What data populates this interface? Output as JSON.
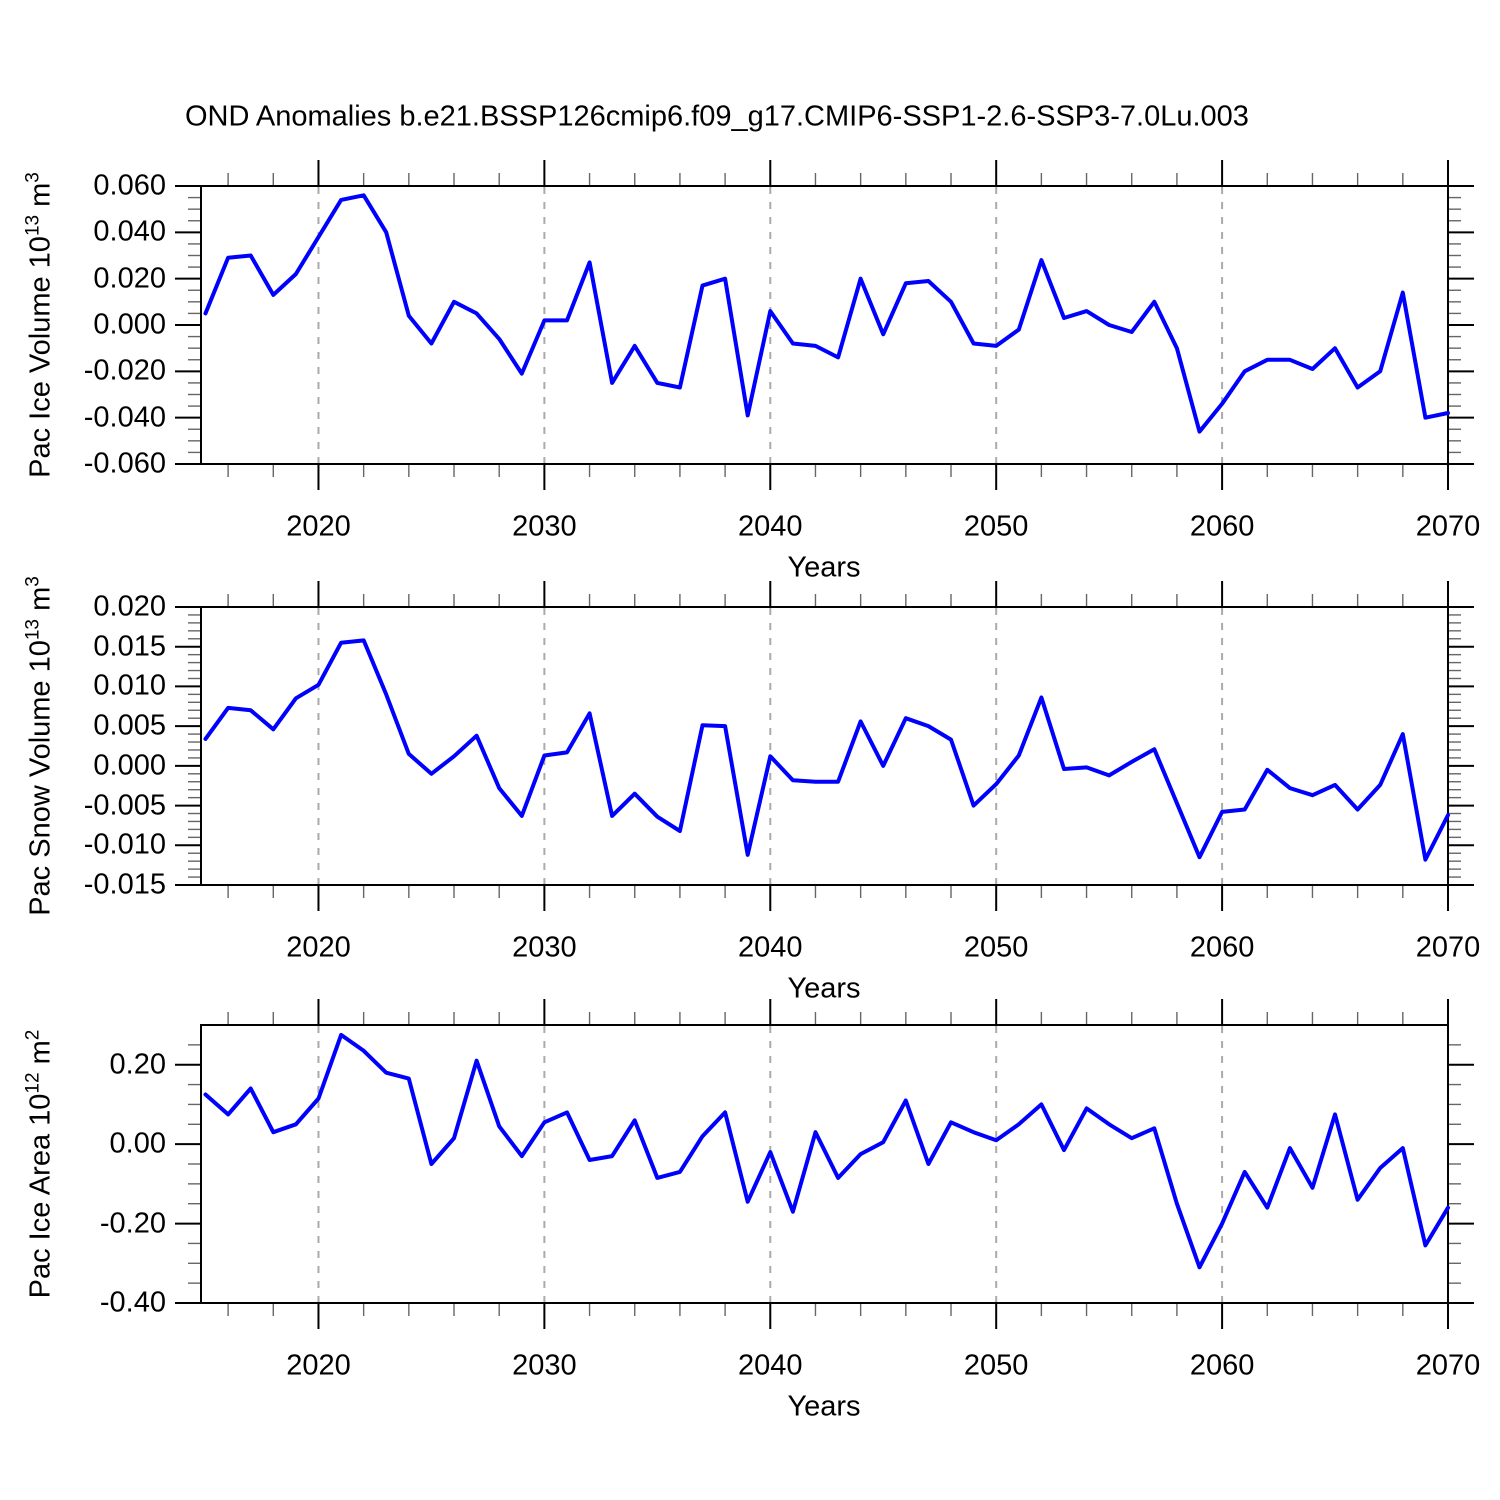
{
  "title": "OND Anomalies b.e21.BSSP126cmip6.f09_g17.CMIP6-SSP1-2.6-SSP3-7.0Lu.003",
  "line_color": "#0000ff",
  "axis_color": "#000000",
  "minor_tick_color": "#666666",
  "gridline_color": "#aaaaaa",
  "chart_data": {
    "type": "line",
    "title": "OND Anomalies b.e21.BSSP126cmip6.f09_g17.CMIP6-SSP1-2.6-SSP3-7.0Lu.003",
    "xlabel": "Years",
    "x_range": [
      2014.8,
      2070
    ],
    "x_major_ticks": [
      2020,
      2030,
      2040,
      2050,
      2060,
      2070
    ],
    "x_minor_tick_step": 2,
    "x_gridlines": [
      2020,
      2030,
      2040,
      2050,
      2060
    ],
    "legend": "none",
    "grid": "vertical-dashed-only",
    "years": [
      2015,
      2016,
      2017,
      2018,
      2019,
      2020,
      2021,
      2022,
      2023,
      2024,
      2025,
      2026,
      2027,
      2028,
      2029,
      2030,
      2031,
      2032,
      2033,
      2034,
      2035,
      2036,
      2037,
      2038,
      2039,
      2040,
      2041,
      2042,
      2043,
      2044,
      2045,
      2046,
      2047,
      2048,
      2049,
      2050,
      2051,
      2052,
      2053,
      2054,
      2055,
      2056,
      2057,
      2058,
      2059,
      2060,
      2061,
      2062,
      2063,
      2064,
      2065,
      2066,
      2067,
      2068,
      2069,
      2070
    ],
    "panels": [
      {
        "name": "pac-ice-volume",
        "ylabel_text": "Pac Ice Volume 10^13 m^3",
        "ylabel_parts": [
          "Pac Ice Volume 10",
          "13",
          " m",
          "3"
        ],
        "ylim": [
          -0.06,
          0.06
        ],
        "y_major_ticks": [
          0.06,
          0.04,
          0.02,
          0,
          -0.02,
          -0.04,
          -0.06
        ],
        "y_tick_labels": [
          "0.060",
          "0.040",
          "0.020",
          "0.000",
          "-0.020",
          "-0.040",
          "-0.060"
        ],
        "y_minor_step": 0.005,
        "values": [
          0.005,
          0.029,
          0.03,
          0.013,
          0.022,
          0.038,
          0.054,
          0.056,
          0.04,
          0.004,
          -0.008,
          0.01,
          0.005,
          -0.006,
          -0.021,
          0.002,
          0.002,
          0.027,
          -0.025,
          -0.009,
          -0.025,
          -0.027,
          0.017,
          0.02,
          -0.039,
          0.006,
          -0.008,
          -0.009,
          -0.014,
          0.02,
          -0.004,
          0.018,
          0.019,
          0.01,
          -0.008,
          -0.009,
          -0.002,
          0.028,
          0.003,
          0.006,
          0.0,
          -0.003,
          0.01,
          -0.01,
          -0.046,
          -0.034,
          -0.02,
          -0.015,
          -0.015,
          -0.019,
          -0.01,
          -0.027,
          -0.02,
          0.014,
          -0.04,
          -0.038
        ]
      },
      {
        "name": "pac-snow-volume",
        "ylabel_text": "Pac Snow Volume 10^13 m^3",
        "ylabel_parts": [
          "Pac Snow Volume 10",
          "13",
          " m",
          "3"
        ],
        "ylim": [
          -0.015,
          0.02
        ],
        "y_major_ticks": [
          0.02,
          0.015,
          0.01,
          0.005,
          0,
          -0.005,
          -0.01,
          -0.015
        ],
        "y_tick_labels": [
          "0.020",
          "0.015",
          "0.010",
          "0.005",
          "0.000",
          "-0.005",
          "-0.010",
          "-0.015"
        ],
        "y_minor_step": 0.001,
        "values": [
          0.0034,
          0.0073,
          0.007,
          0.0046,
          0.0085,
          0.0102,
          0.0155,
          0.0158,
          0.009,
          0.0015,
          -0.001,
          0.0012,
          0.0038,
          -0.0028,
          -0.0063,
          0.0013,
          0.0017,
          0.0066,
          -0.0063,
          -0.0035,
          -0.0064,
          -0.0082,
          0.0051,
          0.005,
          -0.0112,
          0.0012,
          -0.0018,
          -0.002,
          -0.002,
          0.0056,
          0.0,
          0.006,
          0.005,
          0.0033,
          -0.005,
          -0.0023,
          0.0013,
          0.0086,
          -0.0004,
          -0.0002,
          -0.0012,
          0.0005,
          0.0021,
          -0.0047,
          -0.0115,
          -0.0058,
          -0.0055,
          -0.0005,
          -0.0028,
          -0.0037,
          -0.0024,
          -0.0055,
          -0.0024,
          0.004,
          -0.0118,
          -0.0062
        ]
      },
      {
        "name": "pac-ice-area",
        "ylabel_text": "Pac Ice Area 10^12 m^2",
        "ylabel_parts": [
          "Pac Ice Area 10",
          "12",
          " m",
          "2"
        ],
        "ylim": [
          -0.4,
          0.3
        ],
        "y_major_ticks": [
          0.2,
          0,
          -0.2,
          -0.4
        ],
        "y_tick_labels": [
          "0.20",
          "0.00",
          "-0.20",
          "-0.40"
        ],
        "y_minor_step": 0.05,
        "values": [
          0.125,
          0.075,
          0.14,
          0.03,
          0.05,
          0.115,
          0.275,
          0.235,
          0.18,
          0.165,
          -0.05,
          0.015,
          0.21,
          0.045,
          -0.03,
          0.055,
          0.08,
          -0.04,
          -0.03,
          0.06,
          -0.085,
          -0.07,
          0.02,
          0.08,
          -0.145,
          -0.02,
          -0.17,
          0.03,
          -0.085,
          -0.025,
          0.005,
          0.11,
          -0.05,
          0.055,
          0.03,
          0.01,
          0.05,
          0.1,
          -0.015,
          0.09,
          0.05,
          0.015,
          0.04,
          -0.15,
          -0.31,
          -0.2,
          -0.07,
          -0.16,
          -0.01,
          -0.11,
          0.075,
          -0.14,
          -0.06,
          -0.01,
          -0.255,
          -0.16
        ]
      }
    ]
  }
}
